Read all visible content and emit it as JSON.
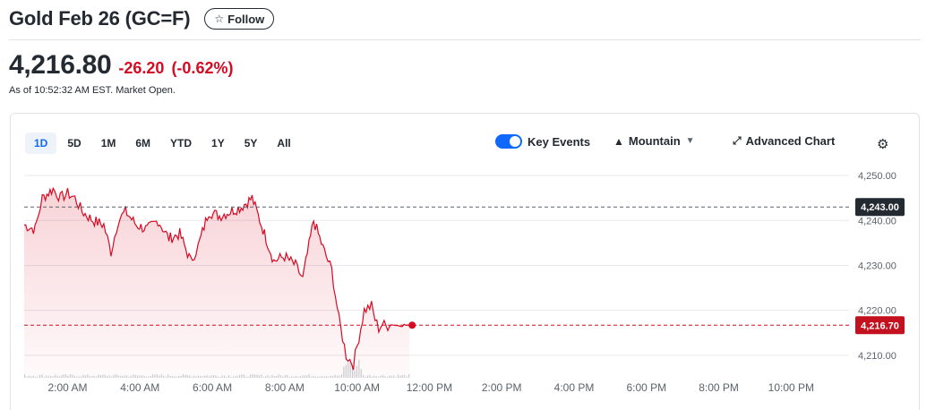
{
  "header": {
    "title": "Gold Feb 26 (GC=F)",
    "follow_label": "Follow",
    "follow_icon": "star-outline-icon"
  },
  "quote": {
    "price": "4,216.80",
    "change": "-26.20",
    "change_pct": "(-0.62%)",
    "as_of": "As of 10:52:32 AM EST. Market Open.",
    "negative_color": "#d60a22"
  },
  "ranges": [
    "1D",
    "5D",
    "1M",
    "6M",
    "YTD",
    "1Y",
    "5Y",
    "All"
  ],
  "active_range": "1D",
  "toolbar": {
    "key_events_label": "Key Events",
    "key_events_on": true,
    "chart_type_label": "Mountain",
    "advanced_chart_label": "Advanced Chart",
    "settings_icon": "gear-icon"
  },
  "chart_data": {
    "type": "area",
    "ylim": [
      4205,
      4252
    ],
    "y_ticks": [
      4250,
      4240,
      4230,
      4220,
      4210
    ],
    "y_tick_labels": [
      "4,250.00",
      "4,240.00",
      "4,230.00",
      "4,220.00",
      "4,210.00"
    ],
    "x_range_hours": [
      0.8,
      23.6
    ],
    "x_tick_hours": [
      2,
      4,
      6,
      8,
      10,
      12,
      14,
      16,
      18,
      20,
      22
    ],
    "x_tick_labels": [
      "2:00 AM",
      "4:00 AM",
      "6:00 AM",
      "8:00 AM",
      "10:00 AM",
      "12:00 PM",
      "2:00 PM",
      "4:00 PM",
      "6:00 PM",
      "8:00 PM",
      "10:00 PM"
    ],
    "previous_close": 4243.0,
    "previous_close_label": "4,243.00",
    "last_value": 4216.7,
    "last_label": "4,216.70",
    "line_color": "#d60a22",
    "series": [
      {
        "x": [
          0.8,
          1.1,
          1.3,
          1.6,
          1.8,
          2.0,
          2.2,
          2.4,
          2.7,
          3.0,
          3.2,
          3.4,
          3.6,
          3.9,
          4.2,
          4.5,
          4.8,
          5.1,
          5.4,
          5.6,
          5.9,
          6.2,
          6.5,
          6.8,
          7.1,
          7.4,
          7.7,
          8.0,
          8.3,
          8.5,
          8.8,
          9.1,
          9.3,
          9.5,
          9.7,
          9.9,
          10.0,
          10.2,
          10.4,
          10.5,
          10.6,
          10.7,
          10.8,
          10.9,
          11.0,
          11.1,
          11.2,
          11.3,
          11.45
        ],
        "y": [
          4239,
          4238,
          4245,
          4247,
          4245,
          4246,
          4245,
          4242,
          4240,
          4239,
          4233,
          4240,
          4242,
          4239,
          4238,
          4240,
          4236,
          4237,
          4231,
          4234,
          4242,
          4241,
          4242,
          4243,
          4245,
          4238,
          4231,
          4232,
          4230,
          4227,
          4240,
          4233,
          4229,
          4218,
          4210,
          4208,
          4212,
          4220,
          4221,
          4218,
          4216,
          4217,
          4216.5,
          4216.7,
          4216.9,
          4216.6,
          4216.8,
          4216.7,
          4216.7
        ]
      }
    ]
  }
}
